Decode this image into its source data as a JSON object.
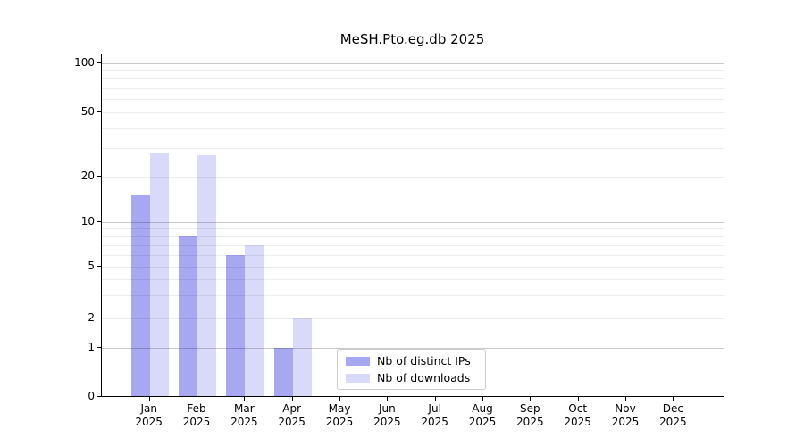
{
  "chart_data": {
    "type": "bar",
    "title": "MeSH.Pto.eg.db 2025",
    "categories": [
      "Jan",
      "Feb",
      "Mar",
      "Apr",
      "May",
      "Jun",
      "Jul",
      "Aug",
      "Sep",
      "Oct",
      "Nov",
      "Dec"
    ],
    "x_year": "2025",
    "series": [
      {
        "name": "Nb of distinct IPs",
        "color": "#a8a8f2",
        "values": [
          15,
          8,
          6,
          1,
          0,
          0,
          0,
          0,
          0,
          0,
          0,
          0
        ]
      },
      {
        "name": "Nb of downloads",
        "color": "#d9d9fa",
        "values": [
          28,
          27,
          7,
          2,
          0,
          0,
          0,
          0,
          0,
          0,
          0,
          0
        ]
      }
    ],
    "xlabel": "",
    "ylabel": "",
    "ylim": [
      0,
      110
    ],
    "y_axis": {
      "scale": "symlog-like",
      "tick_labels": [
        0,
        1,
        2,
        5,
        10,
        20,
        50,
        100
      ],
      "major_grid": [
        1,
        10,
        100
      ],
      "minor_grid": [
        2,
        3,
        4,
        5,
        6,
        7,
        8,
        9,
        20,
        30,
        40,
        50,
        60,
        70,
        80,
        90
      ]
    },
    "grid": true,
    "legend_position": "lower center",
    "colors": {
      "bar_distinct_ips": "#a8a8f2",
      "bar_downloads": "#d9d9fa",
      "grid_major": "#c9c9c9",
      "grid_minor": "#ebebeb",
      "spine": "#000000",
      "legend_border": "#cccccc",
      "background": "#ffffff"
    }
  }
}
